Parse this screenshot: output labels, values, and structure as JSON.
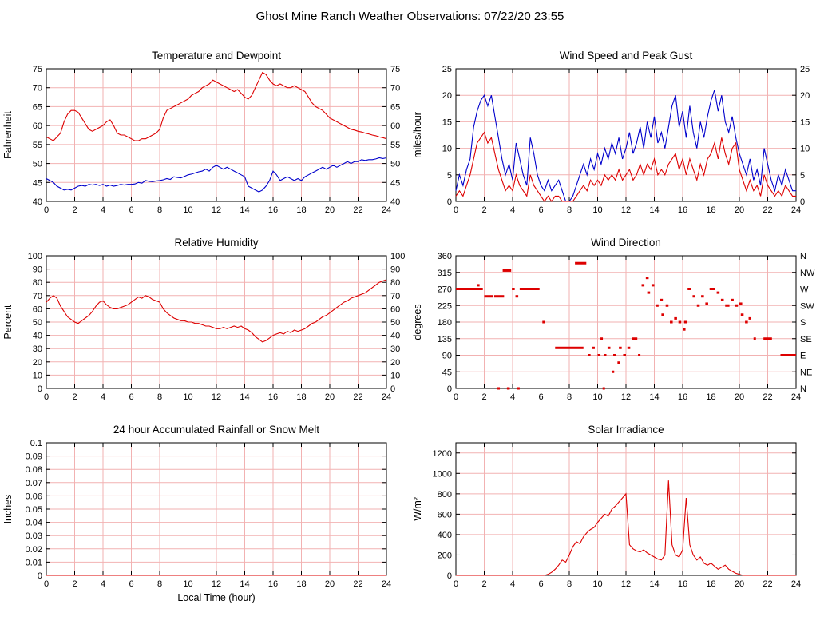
{
  "title": "Ghost Mine Ranch Weather Observations: 07/22/20 23:55",
  "colors": {
    "line_red": "#dd0000",
    "line_blue": "#0000cc",
    "grid": "#f2b2b2",
    "axis": "#000000"
  },
  "chart_data": [
    {
      "type": "line",
      "title": "Temperature and Dewpoint",
      "ylabel": "Fahrenheit",
      "xlabel": "",
      "xlim": [
        0,
        24
      ],
      "ylim": [
        40,
        75
      ],
      "xticks": [
        0,
        2,
        4,
        6,
        8,
        10,
        12,
        14,
        16,
        18,
        20,
        22,
        24
      ],
      "yticks": [
        40,
        45,
        50,
        55,
        60,
        65,
        70,
        75
      ],
      "mirror_right": true,
      "grid": true,
      "legend_position": "none",
      "series": [
        {
          "name": "temperature",
          "color": "#dd0000",
          "x0": 0,
          "dx": 0.25,
          "y": [
            57,
            56.5,
            56,
            57,
            58,
            61,
            63,
            64,
            64,
            63.5,
            62,
            60.5,
            59,
            58.5,
            59,
            59.5,
            60,
            61,
            61.5,
            60,
            58,
            57.5,
            57.5,
            57,
            56.5,
            56,
            56,
            56.5,
            56.5,
            57,
            57.5,
            58,
            59,
            62,
            64,
            64.5,
            65,
            65.5,
            66,
            66.5,
            67,
            68,
            68.5,
            69,
            70,
            70.5,
            71,
            72,
            71.5,
            71,
            70.5,
            70,
            69.5,
            69,
            69.5,
            68.5,
            67.5,
            67,
            68,
            70,
            72,
            74,
            73.5,
            72,
            71,
            70.5,
            71,
            70.5,
            70,
            70,
            70.5,
            70,
            69.5,
            69,
            67.5,
            66,
            65,
            64.5,
            64,
            63,
            62,
            61.5,
            61,
            60.5,
            60,
            59.5,
            59,
            58.8,
            58.5,
            58.3,
            58,
            57.8,
            57.5,
            57.3,
            57,
            56.8,
            56.5
          ]
        },
        {
          "name": "dewpoint",
          "color": "#0000cc",
          "x0": 0,
          "dx": 0.25,
          "y": [
            46,
            45.5,
            45,
            44,
            43.5,
            43,
            43.2,
            43,
            43.5,
            44,
            44.2,
            44,
            44.5,
            44.3,
            44.5,
            44.2,
            44.5,
            44,
            44.3,
            44,
            44.2,
            44.5,
            44.3,
            44.5,
            44.5,
            44.6,
            45,
            44.8,
            45.5,
            45.3,
            45.2,
            45.4,
            45.5,
            45.7,
            46,
            45.8,
            46.5,
            46.3,
            46.2,
            46.6,
            47,
            47.2,
            47.5,
            47.8,
            48,
            48.5,
            48,
            49,
            49.5,
            49,
            48.5,
            49,
            48.5,
            48,
            47.5,
            47,
            46.5,
            44,
            43.5,
            43,
            42.5,
            43,
            44,
            45.5,
            48,
            47,
            45.5,
            46,
            46.5,
            46,
            45.5,
            46,
            45.5,
            46.5,
            47,
            47.5,
            48,
            48.5,
            49,
            48.5,
            49,
            49.5,
            49,
            49.5,
            50,
            50.5,
            50,
            50.5,
            50.5,
            51,
            50.8,
            51,
            51,
            51.2,
            51.5,
            51.3,
            51.5
          ]
        }
      ]
    },
    {
      "type": "line",
      "title": "Wind Speed and Peak Gust",
      "ylabel": "miles/hour",
      "xlabel": "",
      "xlim": [
        0,
        24
      ],
      "ylim": [
        0,
        25
      ],
      "xticks": [
        0,
        2,
        4,
        6,
        8,
        10,
        12,
        14,
        16,
        18,
        20,
        22,
        24
      ],
      "yticks": [
        0,
        5,
        10,
        15,
        20,
        25
      ],
      "mirror_right": true,
      "grid": true,
      "series": [
        {
          "name": "peak_gust",
          "color": "#0000cc",
          "x0": 0,
          "dx": 0.25,
          "y": [
            2,
            5,
            3,
            6,
            8,
            14,
            17,
            19,
            20,
            18,
            20,
            16,
            12,
            8,
            5,
            7,
            4,
            11,
            8,
            5,
            3,
            12,
            9,
            5,
            3,
            2,
            4,
            2,
            3,
            4,
            2,
            0,
            0,
            1,
            3,
            5,
            7,
            5,
            8,
            6,
            9,
            7,
            10,
            8,
            11,
            9,
            12,
            8,
            10,
            13,
            9,
            11,
            14,
            10,
            15,
            12,
            16,
            11,
            13,
            10,
            14,
            18,
            20,
            14,
            17,
            12,
            18,
            13,
            10,
            15,
            12,
            16,
            19,
            21,
            17,
            20,
            15,
            13,
            16,
            12,
            9,
            7,
            5,
            8,
            4,
            6,
            3,
            10,
            7,
            4,
            2,
            5,
            3,
            6,
            4,
            2,
            2
          ]
        },
        {
          "name": "wind_speed",
          "color": "#dd0000",
          "x0": 0,
          "dx": 0.25,
          "y": [
            1,
            2,
            1,
            3,
            5,
            8,
            11,
            12,
            13,
            11,
            12,
            9,
            6,
            4,
            2,
            3,
            2,
            5,
            3,
            2,
            1,
            5,
            3,
            2,
            1,
            0,
            1,
            0,
            1,
            1,
            0,
            0,
            0,
            0,
            1,
            2,
            3,
            2,
            4,
            3,
            4,
            3,
            5,
            4,
            5,
            4,
            6,
            4,
            5,
            6,
            4,
            5,
            7,
            5,
            7,
            6,
            8,
            5,
            6,
            5,
            7,
            8,
            9,
            6,
            8,
            5,
            8,
            6,
            4,
            7,
            5,
            8,
            9,
            11,
            8,
            12,
            9,
            7,
            10,
            11,
            6,
            4,
            2,
            4,
            2,
            3,
            1,
            5,
            3,
            2,
            1,
            2,
            1,
            3,
            2,
            1,
            1
          ]
        }
      ]
    },
    {
      "type": "line",
      "title": "Relative Humidity",
      "ylabel": "Percent",
      "xlabel": "",
      "xlim": [
        0,
        24
      ],
      "ylim": [
        0,
        100
      ],
      "xticks": [
        0,
        2,
        4,
        6,
        8,
        10,
        12,
        14,
        16,
        18,
        20,
        22,
        24
      ],
      "yticks": [
        0,
        10,
        20,
        30,
        40,
        50,
        60,
        70,
        80,
        90,
        100
      ],
      "mirror_right": true,
      "grid": true,
      "series": [
        {
          "name": "relative_humidity",
          "color": "#dd0000",
          "x0": 0,
          "dx": 0.25,
          "y": [
            65,
            68,
            70,
            68,
            62,
            58,
            54,
            52,
            50,
            49,
            51,
            53,
            55,
            58,
            62,
            65,
            66,
            63,
            61,
            60,
            60,
            61,
            62,
            63,
            65,
            67,
            69,
            68,
            70,
            69,
            67,
            66,
            65,
            60,
            57,
            55,
            53,
            52,
            51,
            51,
            50,
            50,
            49,
            49,
            48,
            47,
            47,
            46,
            45,
            45,
            46,
            45,
            46,
            47,
            46,
            47,
            45,
            44,
            42,
            39,
            37,
            35,
            36,
            38,
            40,
            41,
            42,
            41,
            43,
            42,
            44,
            43,
            44,
            45,
            47,
            49,
            50,
            52,
            54,
            55,
            57,
            59,
            61,
            63,
            65,
            66,
            68,
            69,
            70,
            71,
            72,
            74,
            76,
            78,
            80,
            81,
            82
          ]
        }
      ]
    },
    {
      "type": "scatter",
      "title": "Wind Direction",
      "ylabel": "degrees",
      "xlabel": "",
      "xlim": [
        0,
        24
      ],
      "ylim": [
        0,
        360
      ],
      "xticks": [
        0,
        2,
        4,
        6,
        8,
        10,
        12,
        14,
        16,
        18,
        20,
        22,
        24
      ],
      "yticks": [
        0,
        45,
        90,
        135,
        180,
        225,
        270,
        315,
        360
      ],
      "right_labels": [
        "N",
        "NE",
        "E",
        "SE",
        "S",
        "SW",
        "W",
        "NW",
        "N"
      ],
      "grid": true,
      "marker_color": "#dd0000",
      "segments": [
        [
          0,
          1.9,
          270
        ],
        [
          1.5,
          1.65,
          280
        ],
        [
          2.0,
          2.6,
          250
        ],
        [
          2.7,
          3.4,
          250
        ],
        [
          2.9,
          3.1,
          0
        ],
        [
          3.3,
          3.9,
          320
        ],
        [
          3.6,
          3.8,
          0
        ],
        [
          3.95,
          4.15,
          270
        ],
        [
          4.2,
          4.4,
          250
        ],
        [
          4.3,
          4.5,
          0
        ],
        [
          4.5,
          5.9,
          270
        ],
        [
          6.1,
          6.3,
          180
        ],
        [
          7.0,
          9.0,
          110
        ],
        [
          8.4,
          9.2,
          340
        ],
        [
          9.3,
          9.5,
          90
        ],
        [
          9.6,
          9.8,
          110
        ],
        [
          10.0,
          10.2,
          90
        ],
        [
          10.2,
          10.35,
          135
        ],
        [
          10.35,
          10.5,
          0
        ],
        [
          10.45,
          10.6,
          90
        ],
        [
          10.7,
          10.9,
          110
        ],
        [
          11.0,
          11.15,
          45
        ],
        [
          11.1,
          11.3,
          90
        ],
        [
          11.4,
          11.55,
          70
        ],
        [
          11.5,
          11.7,
          110
        ],
        [
          11.8,
          12.0,
          90
        ],
        [
          12.1,
          12.3,
          110
        ],
        [
          12.4,
          12.8,
          135
        ],
        [
          12.85,
          13.0,
          90
        ],
        [
          13.1,
          13.3,
          280
        ],
        [
          13.4,
          13.6,
          300
        ],
        [
          13.5,
          13.7,
          260
        ],
        [
          13.8,
          14.0,
          280
        ],
        [
          14.1,
          14.3,
          225
        ],
        [
          14.4,
          14.6,
          240
        ],
        [
          14.5,
          14.7,
          200
        ],
        [
          14.8,
          15.0,
          225
        ],
        [
          15.1,
          15.3,
          180
        ],
        [
          15.4,
          15.6,
          190
        ],
        [
          15.7,
          15.9,
          180
        ],
        [
          16.0,
          16.2,
          160
        ],
        [
          16.1,
          16.3,
          180
        ],
        [
          16.35,
          16.6,
          270
        ],
        [
          16.7,
          16.9,
          250
        ],
        [
          17.0,
          17.2,
          225
        ],
        [
          17.3,
          17.5,
          250
        ],
        [
          17.6,
          17.8,
          230
        ],
        [
          17.9,
          18.3,
          270
        ],
        [
          18.4,
          18.6,
          260
        ],
        [
          18.7,
          18.9,
          240
        ],
        [
          19.0,
          19.3,
          225
        ],
        [
          19.4,
          19.6,
          240
        ],
        [
          19.7,
          19.9,
          225
        ],
        [
          20.0,
          20.2,
          230
        ],
        [
          20.1,
          20.3,
          200
        ],
        [
          20.4,
          20.6,
          180
        ],
        [
          20.65,
          20.8,
          190
        ],
        [
          21.0,
          21.15,
          135
        ],
        [
          21.7,
          22.3,
          135
        ],
        [
          22.9,
          24.0,
          90
        ]
      ]
    },
    {
      "type": "line",
      "title": "24 hour Accumulated Rainfall or Snow Melt",
      "ylabel": "Inches",
      "xlabel": "Local Time (hour)",
      "xlim": [
        0,
        24
      ],
      "ylim": [
        0,
        0.1
      ],
      "xticks": [
        0,
        2,
        4,
        6,
        8,
        10,
        12,
        14,
        16,
        18,
        20,
        22,
        24
      ],
      "yticks": [
        0,
        0.01,
        0.02,
        0.03,
        0.04,
        0.05,
        0.06,
        0.07,
        0.08,
        0.09,
        0.1
      ],
      "mirror_right": false,
      "grid": true,
      "series": [
        {
          "name": "accumulated_rainfall",
          "color": "#dd0000",
          "x0": 0,
          "dx": 24,
          "y": [
            0,
            0
          ]
        }
      ]
    },
    {
      "type": "line",
      "title": "Solar Irradiance",
      "ylabel": "W/m²",
      "xlabel": "",
      "xlim": [
        0,
        24
      ],
      "ylim": [
        0,
        1300
      ],
      "xticks": [
        0,
        2,
        4,
        6,
        8,
        10,
        12,
        14,
        16,
        18,
        20,
        22,
        24
      ],
      "yticks": [
        0,
        200,
        400,
        600,
        800,
        1000,
        1200
      ],
      "mirror_right": false,
      "grid": true,
      "series": [
        {
          "name": "solar_irradiance",
          "color": "#dd0000",
          "x0": 0,
          "dx": 0.25,
          "y": [
            0,
            0,
            0,
            0,
            0,
            0,
            0,
            0,
            0,
            0,
            0,
            0,
            0,
            0,
            0,
            0,
            0,
            0,
            0,
            0,
            0,
            0,
            0,
            0,
            0,
            0,
            10,
            30,
            60,
            100,
            150,
            130,
            200,
            280,
            330,
            310,
            380,
            420,
            450,
            470,
            520,
            560,
            600,
            580,
            650,
            680,
            720,
            760,
            800,
            300,
            260,
            240,
            230,
            250,
            220,
            200,
            180,
            160,
            150,
            200,
            930,
            300,
            200,
            180,
            250,
            760,
            300,
            200,
            150,
            180,
            120,
            100,
            120,
            90,
            60,
            80,
            100,
            60,
            40,
            20,
            10,
            0,
            0,
            0,
            0,
            0,
            0,
            0,
            0,
            0,
            0,
            0,
            0,
            0,
            0,
            0,
            0
          ]
        }
      ]
    }
  ]
}
